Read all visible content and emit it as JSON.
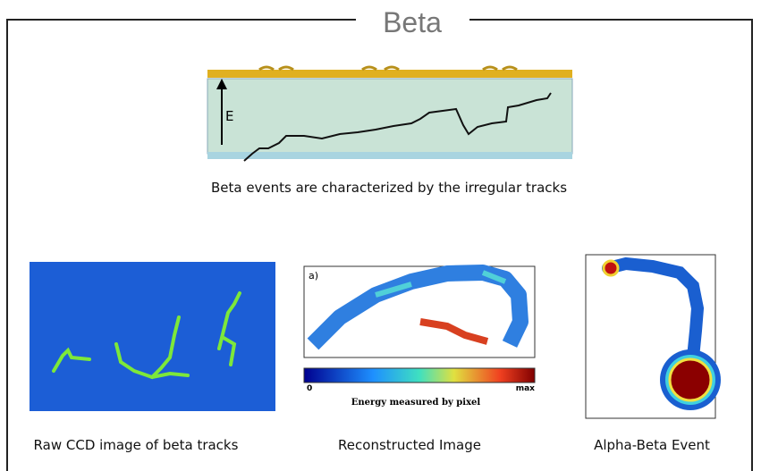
{
  "header": {
    "title": "Beta"
  },
  "detector": {
    "field_label": "E",
    "caption": "Beta events are characterized by the irregular tracks"
  },
  "panels": [
    {
      "caption": "Raw CCD image of beta tracks"
    },
    {
      "panel_label": "a)",
      "scale_min": "0",
      "scale_max": "max",
      "scale_title": "Energy measured by pixel",
      "caption": "Reconstructed Image"
    },
    {
      "caption": "Alpha-Beta Event"
    }
  ]
}
